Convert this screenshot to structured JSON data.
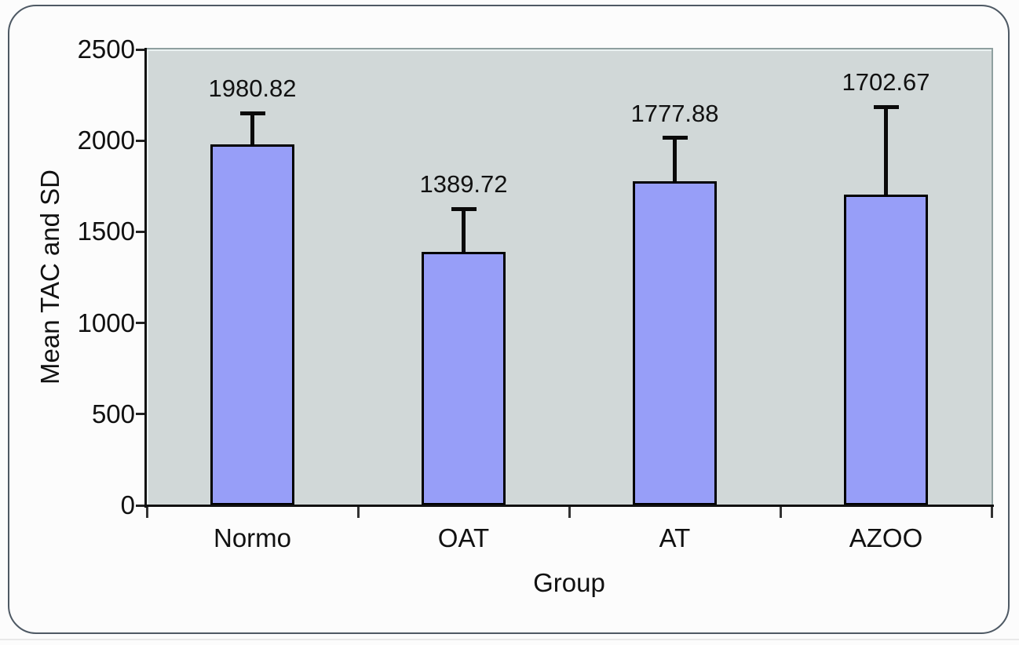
{
  "chart_data": {
    "type": "bar",
    "title": "",
    "xlabel": "Group",
    "ylabel": "Mean TAC and SD",
    "categories": [
      "Normo",
      "OAT",
      "AT",
      "AZOO"
    ],
    "values": [
      1980.82,
      1389.72,
      1777.88,
      1702.67
    ],
    "value_labels": [
      "1980.82",
      "1389.72",
      "1777.88",
      "1702.67"
    ],
    "error_top": [
      2150,
      1625,
      2015,
      2185
    ],
    "ylim": [
      0,
      2500
    ],
    "yticks": [
      0,
      500,
      1000,
      1500,
      2000,
      2500
    ],
    "grid": false,
    "legend_position": "none",
    "colors": {
      "bar_fill": "#979EF8",
      "bar_border": "#000000",
      "plot_bg": "#D1D8D8",
      "plot_border": "#8FA0A0",
      "axis": "#111111",
      "frame_border": "#4E5964",
      "page_bg": "#FCFCFC",
      "text": "#111111"
    }
  }
}
